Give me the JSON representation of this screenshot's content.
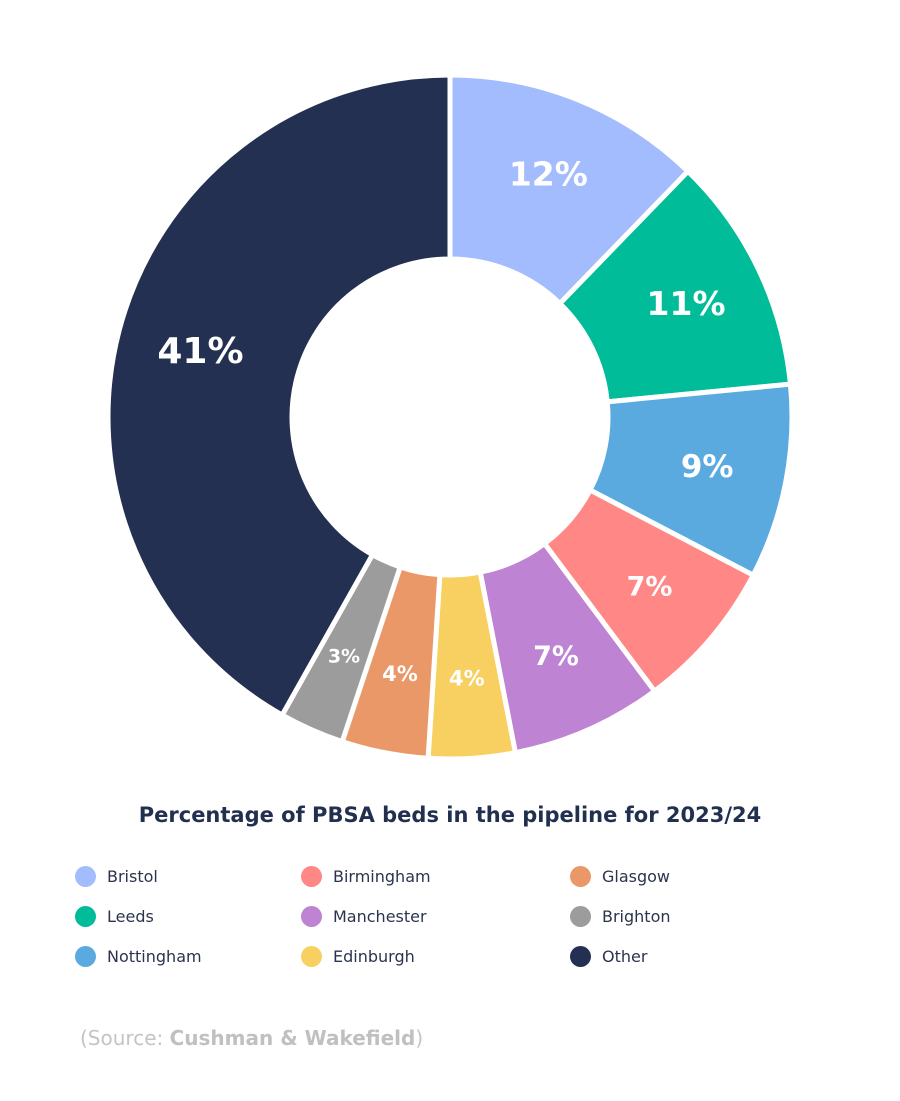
{
  "chart_data": {
    "type": "pie",
    "title": "Percentage of PBSA beds in the pipeline for 2023/24",
    "categories": [
      "Bristol",
      "Leeds",
      "Nottingham",
      "Birmingham",
      "Manchester",
      "Edinburgh",
      "Glasgow",
      "Brighton",
      "Other"
    ],
    "values": [
      12,
      11,
      9,
      7,
      7,
      4,
      4,
      3,
      41
    ],
    "labels": [
      "12%",
      "11%",
      "9%",
      "7%",
      "7%",
      "4%",
      "4%",
      "3%",
      "41%"
    ],
    "colors": [
      "#a3bcfd",
      "#00bc98",
      "#5aaae0",
      "#ff8785",
      "#be83d2",
      "#f8d061",
      "#ea9868",
      "#9c9c9c",
      "#243052"
    ],
    "legend": [
      {
        "label": "Bristol",
        "color": "#a3bcfd"
      },
      {
        "label": "Leeds",
        "color": "#00bc98"
      },
      {
        "label": "Nottingham",
        "color": "#5aaae0"
      },
      {
        "label": "Birmingham",
        "color": "#ff8785"
      },
      {
        "label": "Manchester",
        "color": "#be83d2"
      },
      {
        "label": "Edinburgh",
        "color": "#f8d061"
      },
      {
        "label": "Glasgow",
        "color": "#ea9868"
      },
      {
        "label": "Brighton",
        "color": "#9c9c9c"
      },
      {
        "label": "Other",
        "color": "#243052"
      }
    ],
    "legend_placement": "bottom"
  },
  "source": {
    "prefix": "(Source: ",
    "name": "Cushman & Wakefield",
    "suffix": ")"
  }
}
